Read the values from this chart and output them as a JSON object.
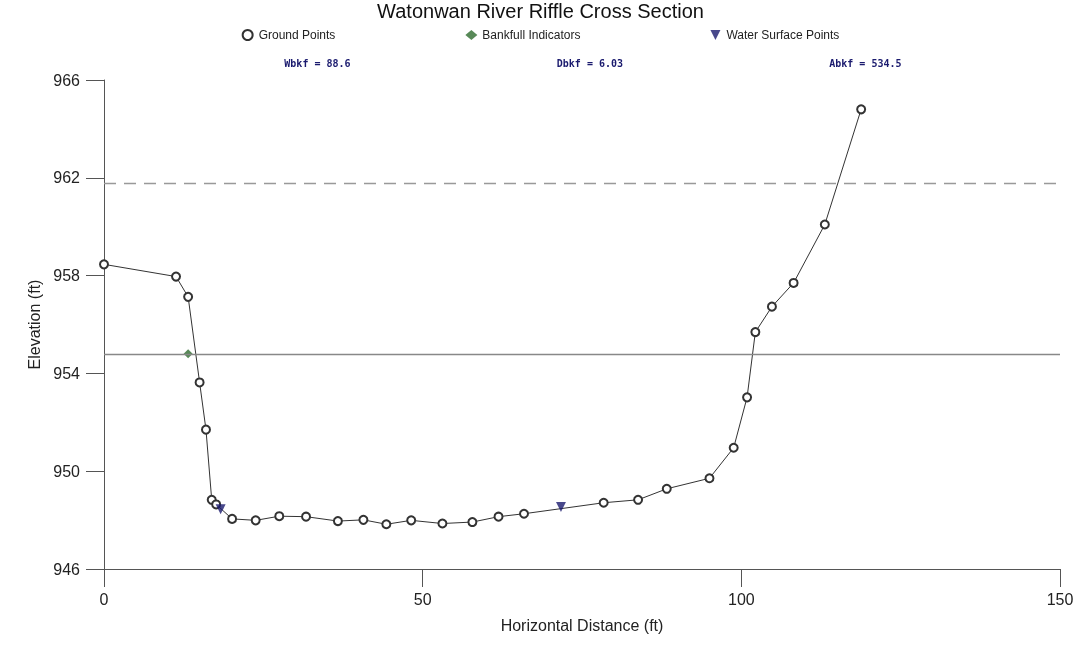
{
  "chart_data": {
    "type": "line",
    "title": "Watonwan River Riffle Cross Section",
    "xlabel": "Horizontal Distance (ft)",
    "ylabel": "Elevation (ft)",
    "annotations": [
      "Wbkf = 88.6",
      "Dbkf = 6.03",
      "Abkf = 534.5"
    ],
    "xlim": [
      0,
      150
    ],
    "xticks": [
      0,
      50,
      100,
      150
    ],
    "ylim": [
      946,
      966
    ],
    "yticks": [
      946,
      950,
      954,
      958,
      962,
      966
    ],
    "grid": false,
    "legend": "top",
    "series": [
      {
        "name": "Ground Points",
        "marker": "circle",
        "color": "#333333",
        "x": [
          0,
          11.3,
          13.2,
          15.0,
          16.0,
          16.9,
          17.6,
          20.1,
          23.8,
          27.5,
          31.7,
          36.7,
          40.7,
          44.3,
          48.2,
          53.1,
          57.8,
          61.9,
          65.9,
          78.4,
          83.8,
          88.3,
          95.0,
          98.8,
          100.9,
          102.2,
          104.8,
          108.2,
          113.1,
          118.8
        ],
        "values": [
          958.46,
          957.96,
          957.13,
          953.63,
          951.7,
          948.83,
          948.64,
          948.05,
          947.99,
          948.16,
          948.14,
          947.96,
          948.01,
          947.83,
          947.99,
          947.86,
          947.92,
          948.14,
          948.26,
          948.71,
          948.83,
          949.28,
          949.71,
          950.96,
          953.02,
          955.69,
          956.73,
          957.7,
          960.09,
          964.8
        ]
      },
      {
        "name": "Bankfull Indicators",
        "type": "scatter",
        "marker": "diamond",
        "color": "#2e6b2e",
        "x": [
          13.2
        ],
        "values": [
          954.8
        ]
      },
      {
        "name": "Water Surface Points",
        "type": "scatter",
        "marker": "triangle",
        "color": "#1a1a6e",
        "x": [
          18.3,
          71.7
        ],
        "values": [
          948.44,
          948.54
        ]
      }
    ],
    "ref_lines": [
      {
        "axis": "y",
        "value": 961.77,
        "line_style": "dashed",
        "color": "#999999"
      },
      {
        "axis": "y",
        "value": 954.8,
        "line_style": "solid",
        "color": "#888888"
      }
    ]
  }
}
